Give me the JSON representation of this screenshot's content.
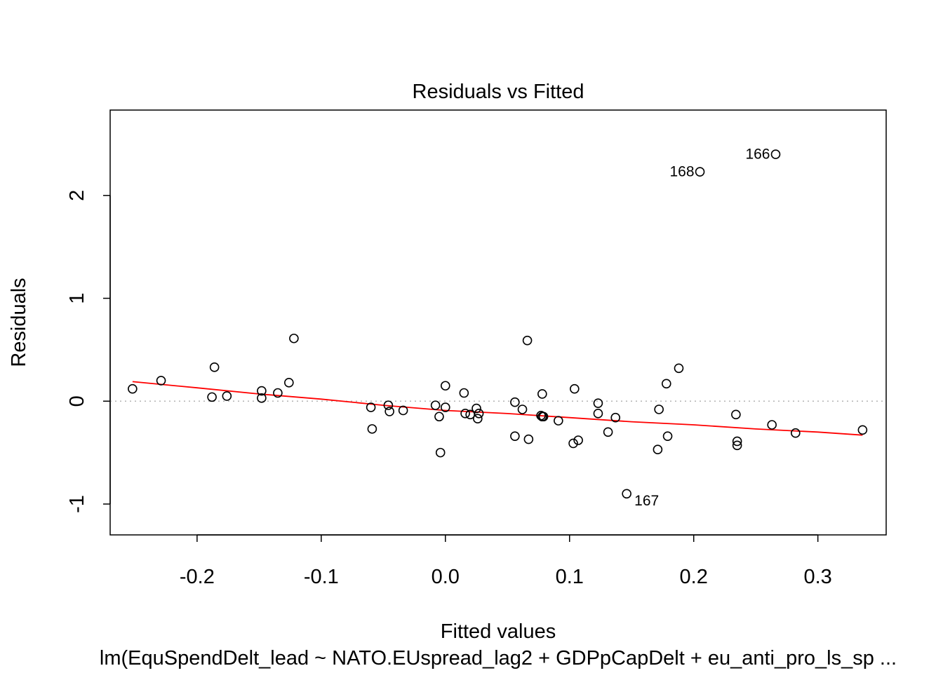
{
  "chart_data": {
    "type": "scatter",
    "title": "Residuals vs Fitted",
    "xlabel": "Fitted values",
    "ylabel": "Residuals",
    "subtitle": "lm(EquSpendDelt_lead ~ NATO.EUspread_lag2 + GDPpCapDelt + eu_anti_pro_ls_sp ...",
    "xlim": [
      -0.27,
      0.355
    ],
    "ylim": [
      -1.3,
      2.83
    ],
    "xticks": [
      -0.2,
      -0.1,
      0.0,
      0.1,
      0.2,
      0.3
    ],
    "xtick_labels": [
      "-0.2",
      "-0.1",
      "0.0",
      "0.1",
      "0.2",
      "0.3"
    ],
    "yticks": [
      -1,
      0,
      1,
      2
    ],
    "ytick_labels": [
      "-1",
      "0",
      "1",
      "2"
    ],
    "reference_line": {
      "y": 0,
      "style": "dotted",
      "color": "#b3b3b3"
    },
    "smoother_color": "#ff0000",
    "grid": false,
    "points": [
      {
        "x": -0.252,
        "y": 0.12
      },
      {
        "x": -0.229,
        "y": 0.2
      },
      {
        "x": -0.186,
        "y": 0.33
      },
      {
        "x": -0.188,
        "y": 0.04
      },
      {
        "x": -0.176,
        "y": 0.05
      },
      {
        "x": -0.148,
        "y": 0.1
      },
      {
        "x": -0.148,
        "y": 0.03
      },
      {
        "x": -0.135,
        "y": 0.08
      },
      {
        "x": -0.126,
        "y": 0.18
      },
      {
        "x": -0.122,
        "y": 0.61
      },
      {
        "x": -0.06,
        "y": -0.06
      },
      {
        "x": -0.059,
        "y": -0.27
      },
      {
        "x": -0.046,
        "y": -0.04
      },
      {
        "x": -0.045,
        "y": -0.1
      },
      {
        "x": -0.034,
        "y": -0.09
      },
      {
        "x": -0.008,
        "y": -0.04
      },
      {
        "x": -0.005,
        "y": -0.15
      },
      {
        "x": -0.004,
        "y": -0.5
      },
      {
        "x": 0.0,
        "y": -0.06
      },
      {
        "x": 0.0,
        "y": 0.15
      },
      {
        "x": 0.015,
        "y": 0.08
      },
      {
        "x": 0.016,
        "y": -0.12
      },
      {
        "x": 0.02,
        "y": -0.13
      },
      {
        "x": 0.025,
        "y": -0.07
      },
      {
        "x": 0.026,
        "y": -0.17
      },
      {
        "x": 0.027,
        "y": -0.12
      },
      {
        "x": 0.056,
        "y": -0.01
      },
      {
        "x": 0.056,
        "y": -0.34
      },
      {
        "x": 0.062,
        "y": -0.08
      },
      {
        "x": 0.066,
        "y": 0.59
      },
      {
        "x": 0.067,
        "y": -0.37
      },
      {
        "x": 0.077,
        "y": -0.14
      },
      {
        "x": 0.078,
        "y": -0.15
      },
      {
        "x": 0.078,
        "y": 0.07
      },
      {
        "x": 0.079,
        "y": -0.15
      },
      {
        "x": 0.091,
        "y": -0.19
      },
      {
        "x": 0.103,
        "y": -0.41
      },
      {
        "x": 0.104,
        "y": 0.12
      },
      {
        "x": 0.107,
        "y": -0.38
      },
      {
        "x": 0.123,
        "y": -0.02
      },
      {
        "x": 0.123,
        "y": -0.12
      },
      {
        "x": 0.131,
        "y": -0.3
      },
      {
        "x": 0.137,
        "y": -0.16
      },
      {
        "x": 0.146,
        "y": -0.9,
        "label": "167"
      },
      {
        "x": 0.171,
        "y": -0.47
      },
      {
        "x": 0.172,
        "y": -0.08
      },
      {
        "x": 0.178,
        "y": 0.17
      },
      {
        "x": 0.179,
        "y": -0.34
      },
      {
        "x": 0.188,
        "y": 0.32
      },
      {
        "x": 0.205,
        "y": 2.23,
        "label": "168"
      },
      {
        "x": 0.234,
        "y": -0.13
      },
      {
        "x": 0.235,
        "y": -0.39
      },
      {
        "x": 0.235,
        "y": -0.43
      },
      {
        "x": 0.263,
        "y": -0.23
      },
      {
        "x": 0.266,
        "y": 2.4,
        "label": "166"
      },
      {
        "x": 0.282,
        "y": -0.31
      },
      {
        "x": 0.336,
        "y": -0.28
      }
    ],
    "smoother": [
      {
        "x": -0.252,
        "y": 0.19
      },
      {
        "x": -0.2,
        "y": 0.13
      },
      {
        "x": -0.15,
        "y": 0.07
      },
      {
        "x": -0.1,
        "y": 0.02
      },
      {
        "x": -0.05,
        "y": -0.04
      },
      {
        "x": 0.0,
        "y": -0.09
      },
      {
        "x": 0.05,
        "y": -0.12
      },
      {
        "x": 0.1,
        "y": -0.16
      },
      {
        "x": 0.15,
        "y": -0.2
      },
      {
        "x": 0.2,
        "y": -0.23
      },
      {
        "x": 0.25,
        "y": -0.27
      },
      {
        "x": 0.3,
        "y": -0.3
      },
      {
        "x": 0.336,
        "y": -0.33
      }
    ]
  }
}
